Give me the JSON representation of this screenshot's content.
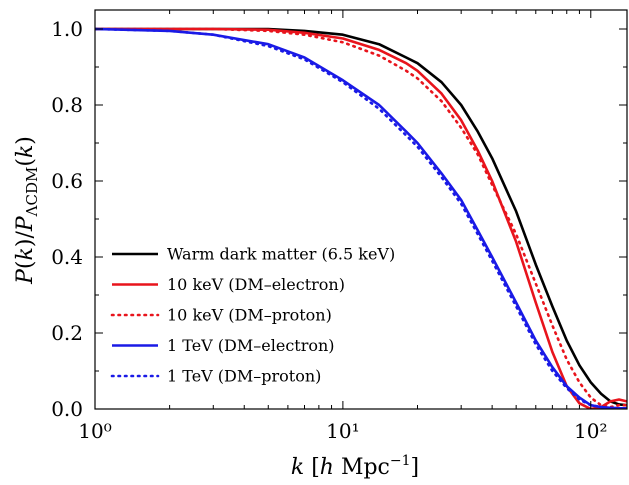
{
  "chart_data": {
    "type": "line",
    "xscale": "log",
    "xlim": [
      1,
      140
    ],
    "ylim": [
      0,
      1.05
    ],
    "xlabel": "k [h Mpc⁻¹]",
    "ylabel": "P(k)/P_ΛCDM(k)",
    "grid": false,
    "legend_position": "lower-left",
    "x_ticks": [
      {
        "value": 1,
        "label": "10⁰"
      },
      {
        "value": 10,
        "label": "10¹"
      },
      {
        "value": 100,
        "label": "10²"
      }
    ],
    "y_ticks": [
      {
        "value": 0.0,
        "label": "0.0"
      },
      {
        "value": 0.2,
        "label": "0.2"
      },
      {
        "value": 0.4,
        "label": "0.4"
      },
      {
        "value": 0.6,
        "label": "0.6"
      },
      {
        "value": 0.8,
        "label": "0.8"
      },
      {
        "value": 1.0,
        "label": "1.0"
      }
    ],
    "series": [
      {
        "name": "Warm dark matter (6.5 keV)",
        "color": "#000000",
        "dash": "solid",
        "x": [
          1,
          3,
          5,
          7,
          10,
          14,
          18,
          20,
          25,
          30,
          35,
          40,
          50,
          60,
          70,
          80,
          90,
          100,
          110,
          120,
          130,
          140
        ],
        "y": [
          1.0,
          1.0,
          1.0,
          0.995,
          0.985,
          0.96,
          0.925,
          0.91,
          0.86,
          0.8,
          0.73,
          0.66,
          0.52,
          0.38,
          0.27,
          0.18,
          0.115,
          0.07,
          0.04,
          0.02,
          0.012,
          0.01
        ]
      },
      {
        "name": "10 keV (DM–electron)",
        "color": "#e8141c",
        "dash": "solid",
        "x": [
          1,
          3,
          5,
          7,
          10,
          14,
          18,
          20,
          25,
          30,
          35,
          40,
          50,
          60,
          70,
          80,
          90,
          100,
          110,
          120,
          130,
          140
        ],
        "y": [
          1.0,
          1.0,
          0.998,
          0.99,
          0.975,
          0.945,
          0.91,
          0.89,
          0.83,
          0.76,
          0.68,
          0.6,
          0.44,
          0.28,
          0.15,
          0.06,
          0.015,
          0.0,
          0.005,
          0.02,
          0.025,
          0.02
        ]
      },
      {
        "name": "10 keV (DM–proton)",
        "color": "#e8141c",
        "dash": "dotted",
        "x": [
          1,
          3,
          5,
          7,
          10,
          14,
          18,
          20,
          25,
          30,
          35,
          40,
          50,
          60,
          70,
          80,
          90,
          100,
          110,
          120,
          130,
          140
        ],
        "y": [
          1.0,
          1.0,
          0.995,
          0.985,
          0.965,
          0.93,
          0.89,
          0.87,
          0.81,
          0.74,
          0.67,
          0.59,
          0.46,
          0.33,
          0.22,
          0.13,
          0.07,
          0.03,
          0.01,
          0.005,
          0.01,
          0.01
        ]
      },
      {
        "name": "1 TeV (DM–electron)",
        "color": "#1a1ae6",
        "dash": "solid",
        "x": [
          1,
          2,
          3,
          5,
          7,
          10,
          14,
          18,
          20,
          25,
          30,
          35,
          40,
          50,
          60,
          70,
          80,
          90,
          100,
          110,
          120,
          130,
          140
        ],
        "y": [
          1.0,
          0.995,
          0.985,
          0.96,
          0.925,
          0.865,
          0.8,
          0.73,
          0.7,
          0.62,
          0.55,
          0.47,
          0.4,
          0.28,
          0.18,
          0.11,
          0.06,
          0.03,
          0.01,
          0.005,
          0.003,
          0.002,
          0.002
        ]
      },
      {
        "name": "1 TeV (DM–proton)",
        "color": "#1a1ae6",
        "dash": "dotted",
        "x": [
          1,
          2,
          3,
          5,
          7,
          10,
          14,
          18,
          20,
          25,
          30,
          35,
          40,
          50,
          60,
          70,
          80,
          90,
          100,
          110,
          120,
          130,
          140
        ],
        "y": [
          1.0,
          0.995,
          0.985,
          0.955,
          0.92,
          0.86,
          0.79,
          0.72,
          0.69,
          0.61,
          0.54,
          0.46,
          0.39,
          0.27,
          0.17,
          0.1,
          0.055,
          0.025,
          0.01,
          0.005,
          0.003,
          0.002,
          0.002
        ]
      }
    ]
  }
}
